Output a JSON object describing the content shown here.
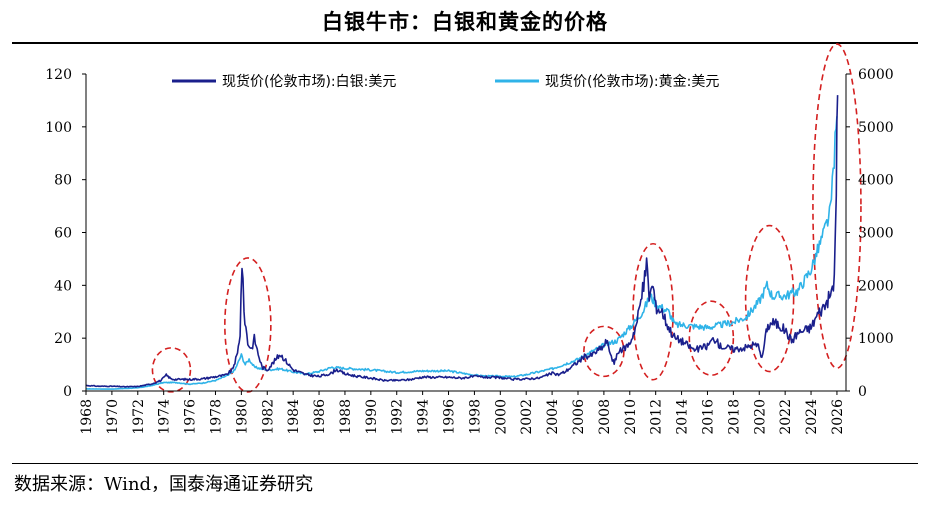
{
  "title": "白银牛市：白银和黄金的价格",
  "source": "数据来源：Wind，国泰海通证券研究",
  "colors": {
    "silver": "#1a1f8c",
    "gold": "#2fb3e8",
    "highlight": "#d42020"
  },
  "chart_data": {
    "type": "line",
    "title": "白银牛市：白银和黄金的价格",
    "x_ticks": [
      "1968",
      "1970",
      "1972",
      "1974",
      "1976",
      "1978",
      "1980",
      "1982",
      "1984",
      "1986",
      "1988",
      "1990",
      "1992",
      "1994",
      "1996",
      "1998",
      "2000",
      "2002",
      "2004",
      "2006",
      "2008",
      "2010",
      "2012",
      "2014",
      "2016",
      "2018",
      "2020",
      "2022",
      "2024",
      "2026"
    ],
    "y_left": {
      "lim": [
        0,
        120
      ],
      "ticks": [
        "0",
        "20",
        "40",
        "60",
        "80",
        "100",
        "120"
      ]
    },
    "y_right": {
      "lim": [
        0,
        6000
      ],
      "ticks": [
        "0",
        "1000",
        "2000",
        "3000",
        "4000",
        "5000",
        "6000"
      ]
    },
    "legend_position": "top",
    "series": [
      {
        "name": "现货价(伦敦市场):白银:美元",
        "axis": "left",
        "color": "#1a1f8c",
        "x": [
          1968,
          1969,
          1970,
          1971,
          1972,
          1973,
          1973.8,
          1974.2,
          1974.6,
          1975,
          1976,
          1977,
          1978,
          1978.8,
          1979.3,
          1979.7,
          1979.9,
          1980.05,
          1980.2,
          1980.5,
          1980.8,
          1981,
          1981.3,
          1981.6,
          1982,
          1982.5,
          1983,
          1983.5,
          1984,
          1985,
          1986,
          1987,
          1987.3,
          1988,
          1989,
          1990,
          1991,
          1992,
          1993,
          1994,
          1995,
          1996,
          1997,
          1998,
          1999,
          2000,
          2001,
          2002,
          2003,
          2004,
          2004.5,
          2005,
          2006,
          2006.5,
          2007,
          2008,
          2008.2,
          2008.8,
          2009,
          2010,
          2010.5,
          2011,
          2011.3,
          2011.5,
          2011.8,
          2012,
          2012.5,
          2013,
          2013.5,
          2014,
          2015,
          2016,
          2016.5,
          2017,
          2018,
          2019,
          2019.5,
          2020,
          2020.2,
          2020.6,
          2021,
          2021.5,
          2022,
          2022.5,
          2023,
          2023.5,
          2024,
          2024.5,
          2025,
          2025.5,
          2025.8,
          2025.95,
          2026.05
        ],
        "y": [
          2.1,
          1.8,
          1.8,
          1.6,
          1.7,
          2.6,
          4.0,
          6.0,
          4.5,
          4.4,
          4.4,
          4.6,
          5.4,
          6.0,
          8.0,
          14,
          22,
          49,
          30,
          18,
          16,
          20,
          14,
          9,
          8,
          11,
          14,
          11,
          8,
          6.2,
          5.5,
          6.8,
          8.2,
          6.5,
          5.5,
          4.9,
          4.0,
          4.0,
          4.3,
          5.3,
          5.2,
          5.2,
          4.9,
          5.5,
          5.2,
          5.0,
          4.4,
          4.6,
          4.9,
          6.7,
          6.2,
          7.3,
          11,
          13,
          13.4,
          17,
          19,
          10,
          14,
          18,
          25,
          38,
          48,
          36,
          40,
          32,
          30,
          24,
          20,
          19,
          15.5,
          17,
          20,
          17,
          15.8,
          16.5,
          17.5,
          17,
          12,
          24,
          26,
          25,
          23,
          19,
          22,
          23,
          24,
          29,
          32,
          36,
          42,
          78,
          112
        ],
        "scale": "linear"
      },
      {
        "name": "现货价(伦敦市场):黄金:美元",
        "axis": "right",
        "color": "#2fb3e8",
        "x": [
          1968,
          1970,
          1972,
          1973,
          1974,
          1975,
          1976,
          1977,
          1978,
          1979,
          1979.5,
          1980,
          1980.3,
          1980.6,
          1981,
          1982,
          1983,
          1984,
          1985,
          1986,
          1987,
          1988,
          1990,
          1992,
          1994,
          1996,
          1998,
          1999,
          2000,
          2001,
          2002,
          2004,
          2006,
          2008,
          2009,
          2010,
          2011,
          2011.6,
          2012,
          2013,
          2013.5,
          2014,
          2016,
          2018,
          2019,
          2020,
          2020.6,
          2021,
          2022,
          2023,
          2024,
          2025,
          2025.5,
          2026
        ],
        "y": [
          40,
          36,
          60,
          100,
          160,
          160,
          130,
          150,
          200,
          300,
          400,
          680,
          500,
          600,
          450,
          400,
          420,
          360,
          320,
          370,
          450,
          430,
          400,
          350,
          380,
          380,
          300,
          280,
          280,
          270,
          310,
          420,
          600,
          870,
          950,
          1200,
          1500,
          1800,
          1650,
          1500,
          1250,
          1250,
          1200,
          1300,
          1400,
          1700,
          2000,
          1800,
          1800,
          1900,
          2300,
          3000,
          3400,
          5200
        ],
        "scale": "linear"
      }
    ],
    "annotations": [
      {
        "type": "ellipse",
        "label": "",
        "center_year": 1974.6,
        "center_y_left": 8,
        "note": "dashed red highlight"
      },
      {
        "type": "ellipse",
        "label": "",
        "center_year": 1980.5,
        "center_y_left": 25,
        "note": "dashed red highlight"
      },
      {
        "type": "ellipse",
        "label": "",
        "center_year": 2008,
        "center_y_left": 15,
        "note": "dashed red highlight"
      },
      {
        "type": "ellipse",
        "label": "",
        "center_year": 2011.8,
        "center_y_left": 30,
        "note": "dashed red highlight"
      },
      {
        "type": "ellipse",
        "label": "",
        "center_year": 2016.3,
        "center_y_left": 20,
        "note": "dashed red highlight"
      },
      {
        "type": "ellipse",
        "label": "",
        "center_year": 2020.8,
        "center_y_left": 35,
        "note": "dashed red highlight"
      },
      {
        "type": "ellipse",
        "label": "",
        "center_year": 2026,
        "center_y_left": 70,
        "note": "dashed red highlight"
      }
    ]
  }
}
